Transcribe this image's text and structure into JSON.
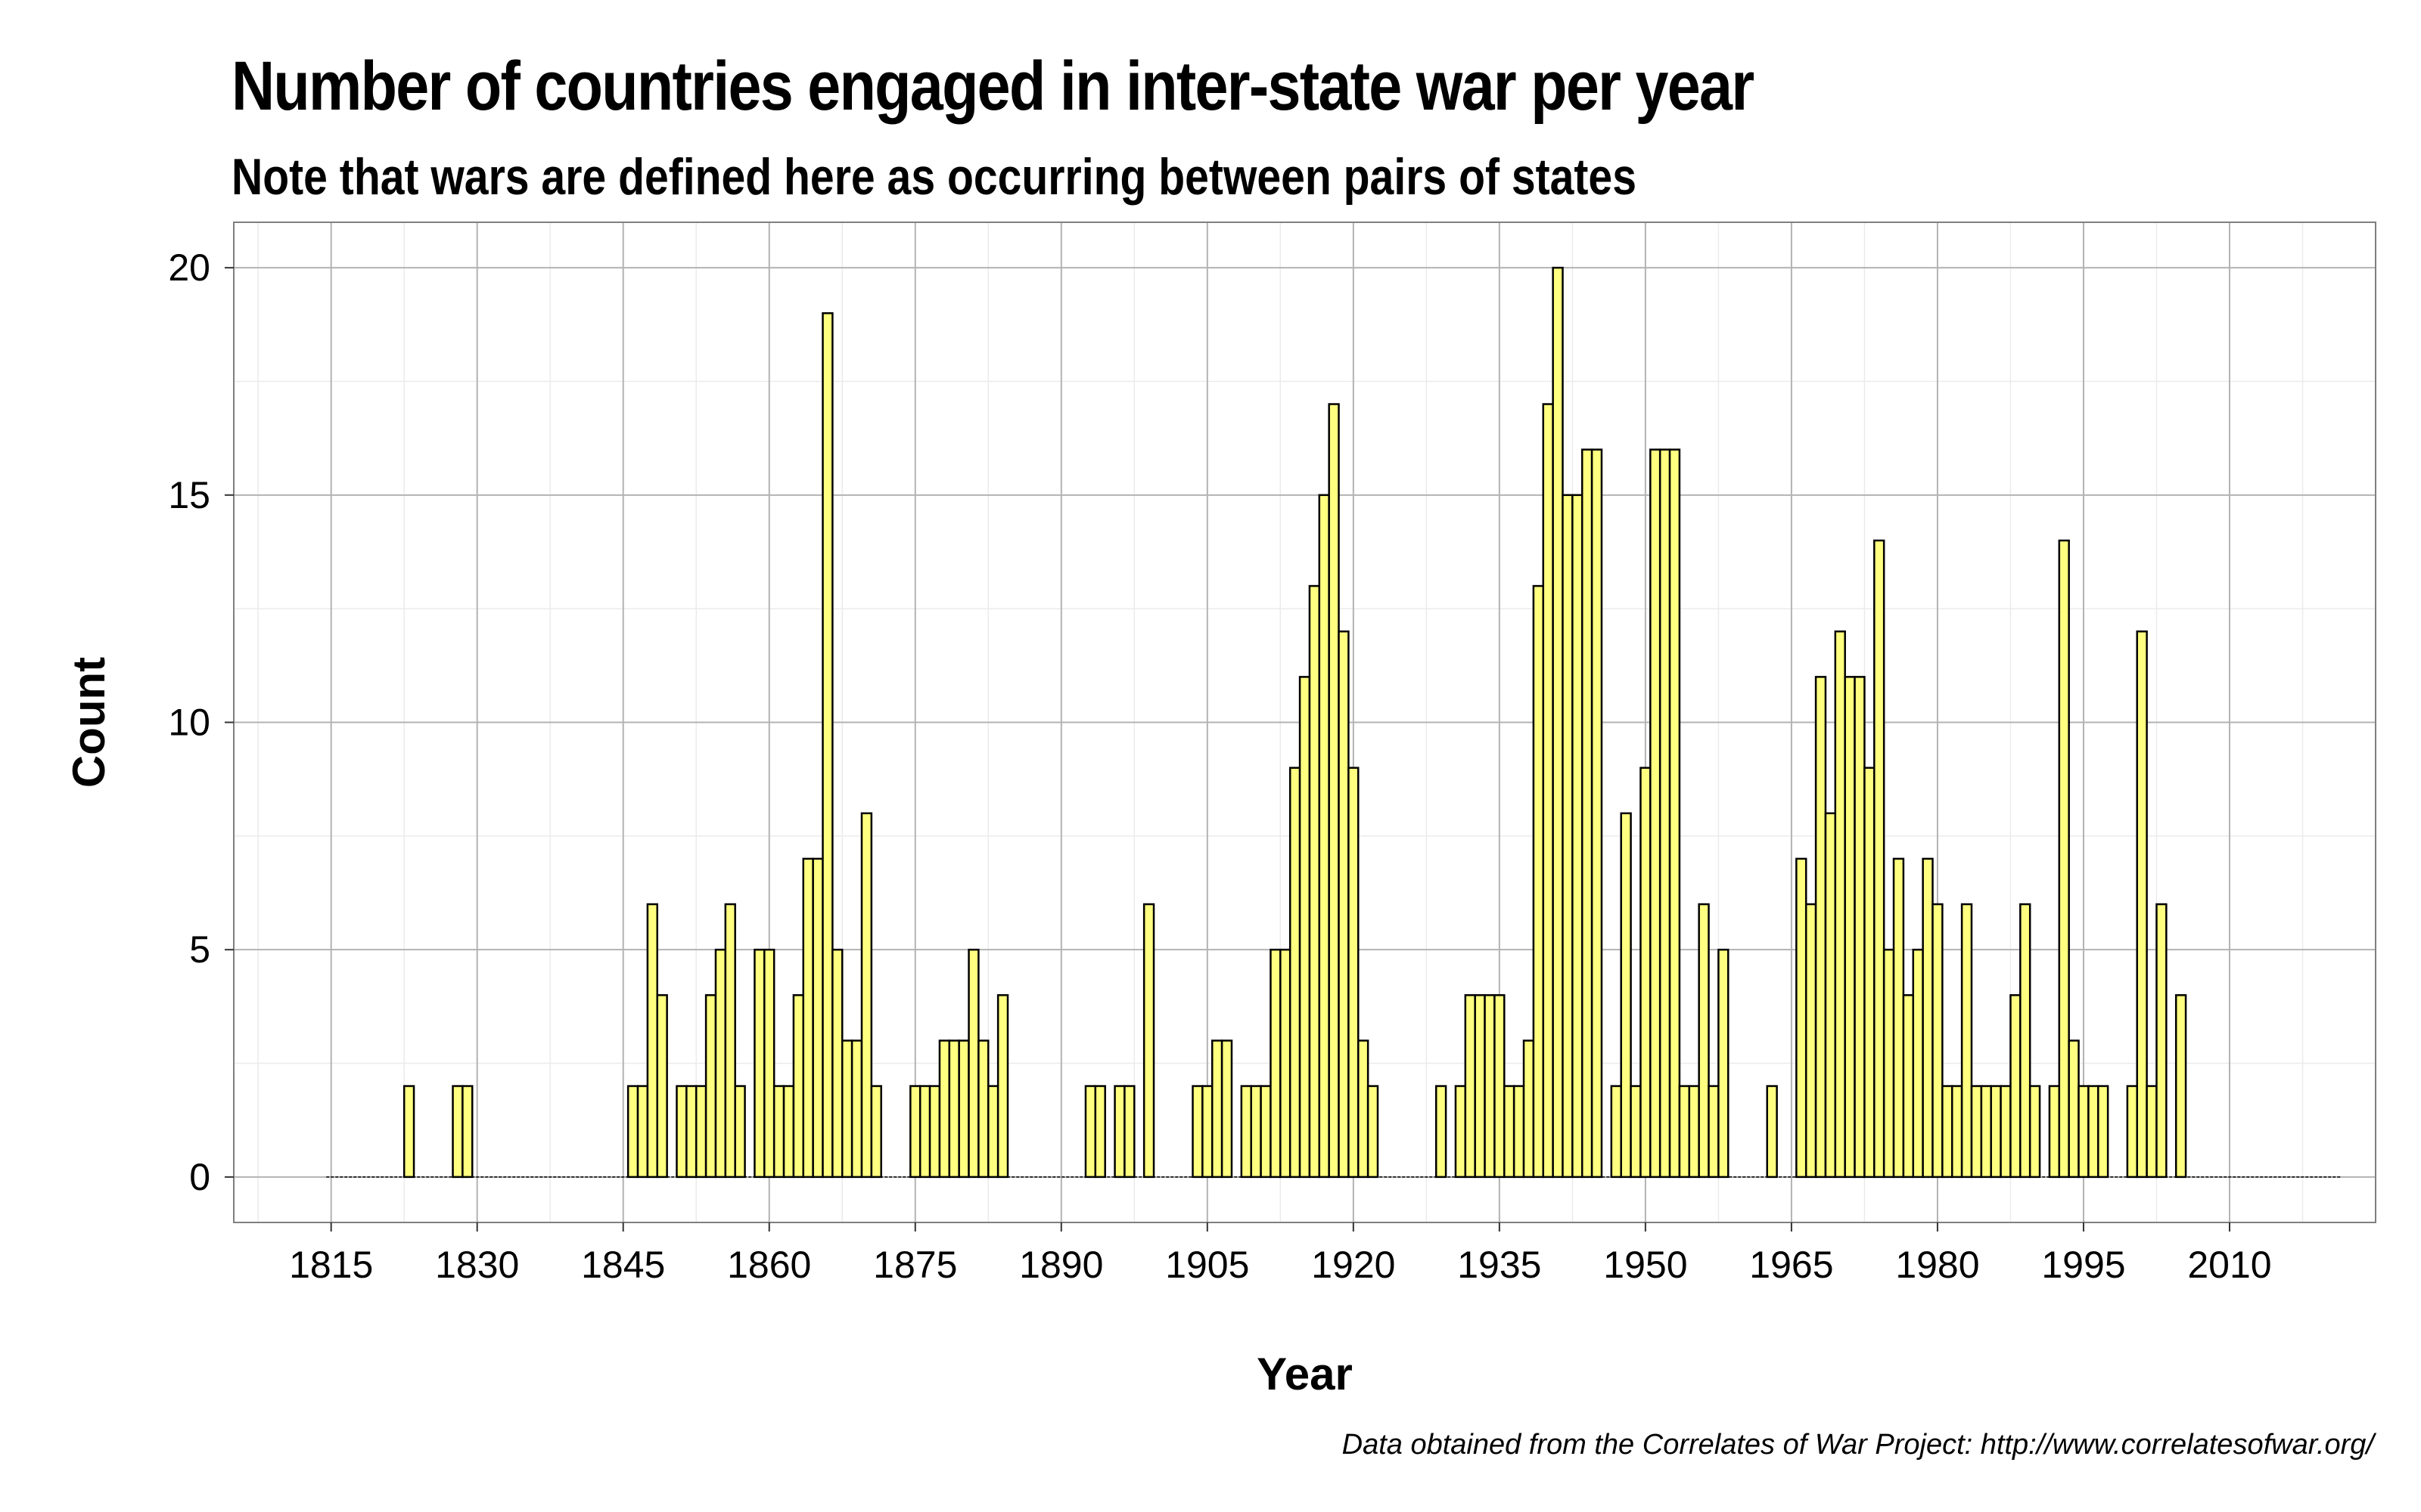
{
  "chart_data": {
    "type": "bar",
    "title": "Number of countries engaged in inter-state war per year",
    "subtitle": "Note that wars are defined here as occurring between pairs of states",
    "xlabel": "Year",
    "ylabel": "Count",
    "caption": "Data obtained from the Correlates of War Project: http://www.correlatesofwar.org/",
    "xlim": [
      1805,
      2025
    ],
    "ylim": [
      -1,
      21
    ],
    "x_ticks": [
      1815,
      1830,
      1845,
      1860,
      1875,
      1890,
      1905,
      1920,
      1935,
      1950,
      1965,
      1980,
      1995,
      2010
    ],
    "y_ticks": [
      0,
      5,
      10,
      15,
      20
    ],
    "grid": true,
    "bar_color": "#ffff80",
    "bar_edge_color": "#000000",
    "x_start": 1815,
    "values": [
      0,
      0,
      0,
      0,
      0,
      0,
      0,
      0,
      2,
      0,
      0,
      0,
      0,
      2,
      2,
      0,
      0,
      0,
      0,
      0,
      0,
      0,
      0,
      0,
      0,
      0,
      0,
      0,
      0,
      0,
      0,
      2,
      2,
      6,
      4,
      0,
      2,
      2,
      2,
      4,
      5,
      6,
      2,
      0,
      5,
      5,
      2,
      2,
      4,
      7,
      7,
      19,
      5,
      3,
      3,
      8,
      2,
      0,
      0,
      0,
      2,
      2,
      2,
      3,
      3,
      3,
      5,
      3,
      2,
      4,
      0,
      0,
      0,
      0,
      0,
      0,
      0,
      0,
      2,
      2,
      0,
      2,
      2,
      0,
      6,
      0,
      0,
      0,
      0,
      2,
      2,
      3,
      3,
      0,
      2,
      2,
      2,
      5,
      5,
      9,
      11,
      13,
      15,
      17,
      12,
      9,
      3,
      2,
      0,
      0,
      0,
      0,
      0,
      0,
      2,
      0,
      2,
      4,
      4,
      4,
      4,
      2,
      2,
      3,
      13,
      17,
      20,
      15,
      15,
      16,
      16,
      0,
      2,
      8,
      2,
      9,
      16,
      16,
      16,
      2,
      2,
      6,
      2,
      5,
      0,
      0,
      0,
      0,
      2,
      0,
      0,
      7,
      6,
      11,
      8,
      12,
      11,
      11,
      9,
      14,
      5,
      7,
      4,
      5,
      7,
      6,
      2,
      2,
      6,
      2,
      2,
      2,
      2,
      4,
      6,
      2,
      0,
      2,
      14,
      3,
      2,
      2,
      2,
      0,
      0,
      2,
      12,
      2,
      6,
      0,
      4,
      0,
      0,
      0,
      0,
      0,
      0,
      0,
      0,
      0,
      0,
      0,
      0,
      0,
      0,
      0,
      0
    ]
  }
}
